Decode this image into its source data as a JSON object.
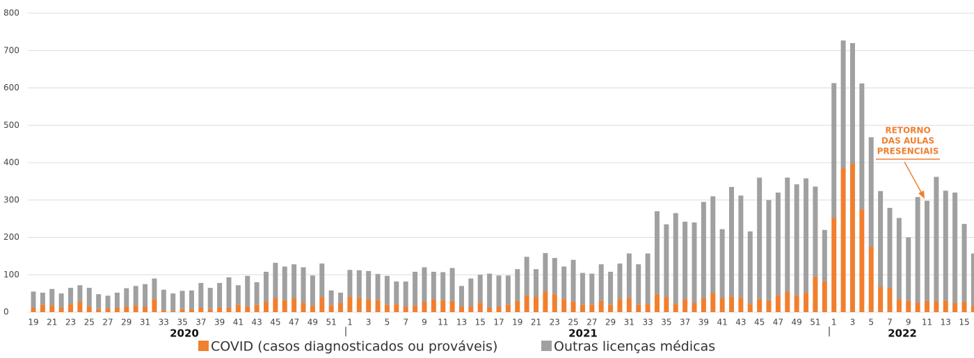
{
  "chart_data": {
    "type": "stacked-bar",
    "categories": [
      "19",
      null,
      "21",
      null,
      "23",
      null,
      "25",
      null,
      "27",
      null,
      "29",
      null,
      "31",
      null,
      "33",
      null,
      "35",
      null,
      "37",
      null,
      "39",
      null,
      "41",
      null,
      "43",
      null,
      "45",
      null,
      "47",
      null,
      "49",
      null,
      "51",
      null,
      "1",
      null,
      "3",
      null,
      "5",
      null,
      "7",
      null,
      "9",
      null,
      "11",
      null,
      "13",
      null,
      "15",
      null,
      "17",
      null,
      "19",
      null,
      "21",
      null,
      "23",
      null,
      "25",
      null,
      "27",
      null,
      "29",
      null,
      "31",
      null,
      "33",
      null,
      "35",
      null,
      "37",
      null,
      "39",
      null,
      "41",
      null,
      "43",
      null,
      "45",
      null,
      "47",
      null,
      "49",
      null,
      "51",
      null,
      "1",
      null,
      "3",
      null,
      "5",
      null,
      "7",
      null,
      "9",
      null,
      "11",
      null,
      "13",
      null,
      "15",
      null
    ],
    "year_labels": [
      "2020",
      "2021",
      "2022"
    ],
    "series": [
      {
        "name": "COVID (casos diagnosticados ou prováveis)",
        "color": "#f07f2f",
        "values": [
          12,
          20,
          18,
          12,
          22,
          28,
          15,
          8,
          10,
          12,
          15,
          18,
          15,
          35,
          5,
          3,
          8,
          8,
          12,
          8,
          12,
          12,
          20,
          15,
          20,
          28,
          38,
          32,
          38,
          25,
          18,
          40,
          18,
          25,
          42,
          38,
          35,
          33,
          20,
          22,
          15,
          18,
          28,
          35,
          32,
          30,
          15,
          15,
          25,
          12,
          15,
          20,
          30,
          45,
          42,
          55,
          48,
          35,
          28,
          20,
          20,
          30,
          20,
          35,
          38,
          20,
          22,
          48,
          40,
          22,
          35,
          25,
          38,
          52,
          38,
          42,
          38,
          22,
          35,
          32,
          45,
          55,
          45,
          52,
          95,
          82,
          252,
          385,
          398,
          275,
          175,
          68,
          65,
          35,
          30,
          25,
          30,
          28,
          30,
          25,
          28,
          18
        ]
      },
      {
        "name": "Outras licenças médicas",
        "color": "#a0a0a0",
        "values": [
          43,
          32,
          44,
          38,
          43,
          44,
          50,
          40,
          34,
          40,
          49,
          52,
          60,
          55,
          55,
          47,
          49,
          50,
          66,
          57,
          66,
          81,
          52,
          82,
          60,
          80,
          94,
          90,
          90,
          95,
          80,
          90,
          40,
          27,
          71,
          74,
          75,
          69,
          77,
          60,
          67,
          90,
          92,
          73,
          75,
          88,
          55,
          75,
          75,
          91,
          83,
          78,
          85,
          103,
          73,
          103,
          97,
          87,
          112,
          85,
          83,
          98,
          88,
          95,
          119,
          108,
          135,
          222,
          195,
          243,
          207,
          215,
          257,
          258,
          184,
          293,
          274,
          194,
          325,
          268,
          275,
          305,
          297,
          306,
          241,
          138,
          361,
          342,
          322,
          337,
          293,
          256,
          214,
          217,
          170,
          283,
          268,
          334,
          295,
          295,
          208,
          139
        ]
      }
    ],
    "ylim": [
      0,
      800
    ],
    "yticks": [
      0,
      100,
      200,
      300,
      400,
      500,
      600,
      700,
      800
    ],
    "grid": true,
    "annotation": [
      "RETORNO",
      "DAS AULAS",
      "PRESENCIAIS"
    ]
  }
}
